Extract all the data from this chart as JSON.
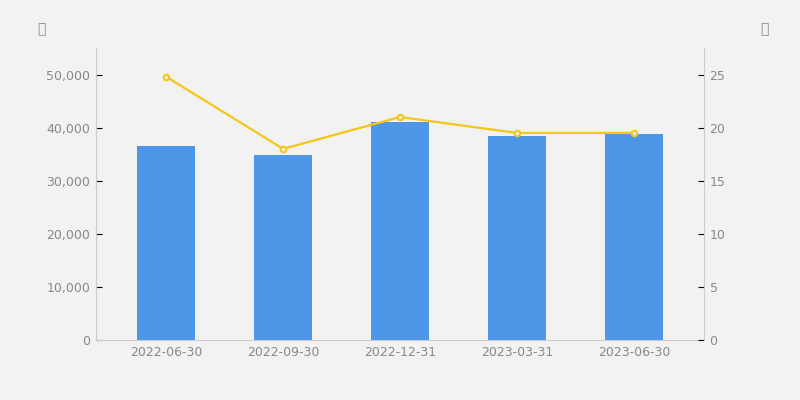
{
  "categories": [
    "2022-06-30",
    "2022-09-30",
    "2022-12-31",
    "2023-03-31",
    "2023-06-30"
  ],
  "bar_values": [
    36500,
    34800,
    41000,
    38500,
    38800
  ],
  "line_values": [
    24.8,
    18.0,
    21.0,
    19.5,
    19.5
  ],
  "bar_color": "#4D96E8",
  "line_color": "#F5C518",
  "left_ylabel": "户",
  "right_ylabel": "元",
  "ylim_left": [
    0,
    55000
  ],
  "ylim_right": [
    0,
    27.5
  ],
  "left_yticks": [
    0,
    10000,
    20000,
    30000,
    40000,
    50000
  ],
  "right_yticks": [
    0,
    5,
    10,
    15,
    20,
    25
  ],
  "background_color": "#f2f2f2",
  "line_marker": "o",
  "line_marker_size": 4,
  "line_marker_facecolor": "#f2f2f2",
  "line_linewidth": 1.6,
  "tick_color": "#888888",
  "label_fontsize": 10,
  "tick_fontsize": 9
}
